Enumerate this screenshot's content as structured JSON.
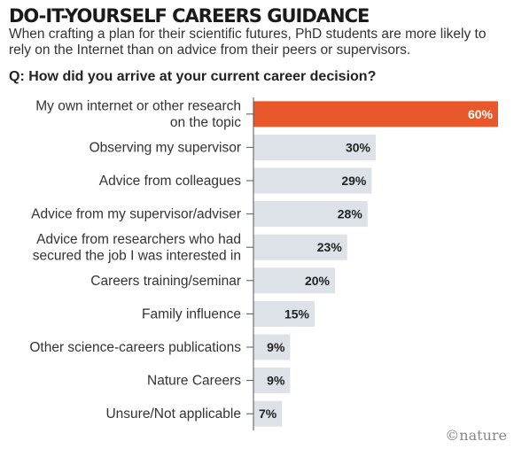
{
  "header": {
    "title": "DO-IT-YOURSELF CAREERS GUIDANCE",
    "subtitle": "When crafting a plan for their scientific futures, PhD students are more likely to rely on the Internet than on advice from their peers or supervisors.",
    "question": "Q: How did you arrive at your current career decision?"
  },
  "credit": "©nature",
  "colors": {
    "highlight": "#e8582b",
    "bar": "#dde2e8",
    "axis": "#555555"
  },
  "chart_data": {
    "type": "bar",
    "orientation": "horizontal",
    "categories": [
      [
        "My own internet or other research",
        "on the topic"
      ],
      [
        "Observing my supervisor"
      ],
      [
        "Advice from colleagues"
      ],
      [
        "Advice from my supervisor/adviser"
      ],
      [
        "Advice from researchers who had",
        "secured the job I was interested in"
      ],
      [
        "Careers training/seminar"
      ],
      [
        "Family influence"
      ],
      [
        "Other science-careers publications"
      ],
      [
        "Nature Careers"
      ],
      [
        "Unsure/Not applicable"
      ]
    ],
    "values": [
      60,
      30,
      29,
      28,
      23,
      20,
      15,
      9,
      9,
      7
    ],
    "value_labels": [
      "60%",
      "30%",
      "29%",
      "28%",
      "23%",
      "20%",
      "15%",
      "9%",
      "9%",
      "7%"
    ],
    "highlight_index": 0,
    "xlim": [
      0,
      60
    ],
    "grid": false
  }
}
